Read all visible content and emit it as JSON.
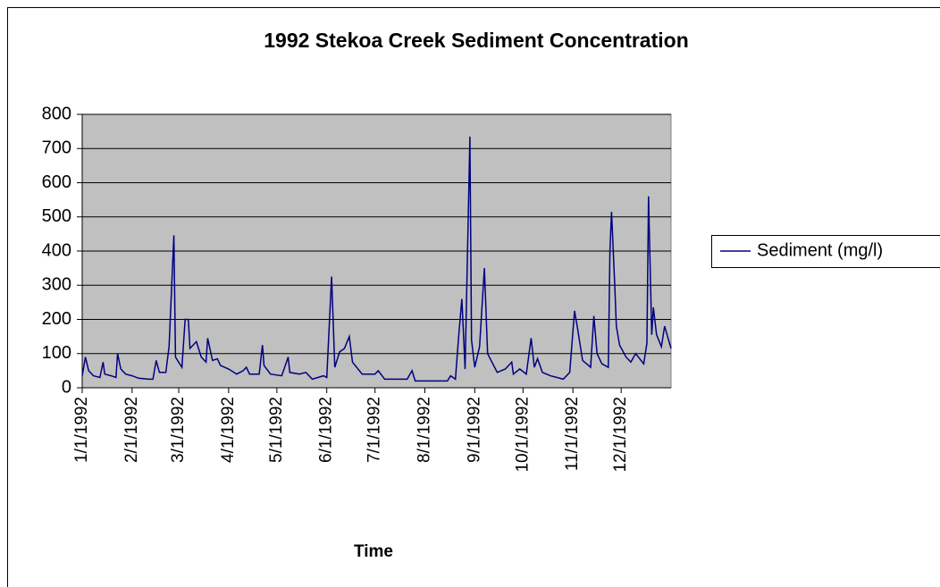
{
  "chart_data": {
    "type": "line",
    "title": "1992 Stekoa Creek Sediment Concentration",
    "x_label": "Time",
    "x": [
      0,
      2,
      4,
      7,
      11,
      13,
      14,
      18,
      21,
      22,
      24,
      27,
      31,
      35,
      41,
      44,
      46,
      48,
      52,
      54,
      57,
      58,
      62,
      64,
      66,
      67,
      71,
      74,
      77,
      78,
      81,
      84,
      86,
      91,
      96,
      100,
      102,
      104,
      110,
      112,
      113,
      117,
      124,
      128,
      129,
      135,
      139,
      143,
      150,
      152,
      155,
      157,
      160,
      163,
      166,
      168,
      174,
      182,
      184,
      188,
      202,
      205,
      207,
      227,
      229,
      232,
      234,
      236,
      238,
      241,
      242,
      244,
      247,
      250,
      252,
      258,
      263,
      267,
      268,
      272,
      276,
      279,
      281,
      283,
      286,
      291,
      299,
      303,
      306,
      308,
      311,
      316,
      318,
      320,
      323,
      327,
      328,
      329,
      331,
      332,
      334,
      338,
      341,
      344,
      349,
      351,
      352,
      354,
      355,
      357,
      360,
      362,
      366
    ],
    "series": [
      {
        "name": "Sediment (mg/l)",
        "color": "#000080",
        "values": [
          35,
          90,
          50,
          35,
          30,
          75,
          40,
          35,
          30,
          100,
          55,
          40,
          35,
          28,
          25,
          25,
          80,
          45,
          45,
          120,
          446,
          90,
          60,
          200,
          200,
          115,
          135,
          90,
          75,
          145,
          80,
          85,
          65,
          55,
          40,
          50,
          60,
          40,
          40,
          125,
          65,
          40,
          35,
          90,
          45,
          40,
          45,
          25,
          35,
          30,
          325,
          60,
          105,
          115,
          150,
          75,
          40,
          40,
          50,
          25,
          25,
          50,
          20,
          20,
          35,
          25,
          150,
          260,
          55,
          735,
          140,
          60,
          120,
          350,
          100,
          45,
          55,
          75,
          40,
          55,
          40,
          145,
          60,
          85,
          45,
          35,
          25,
          45,
          225,
          170,
          80,
          60,
          210,
          100,
          70,
          60,
          400,
          515,
          300,
          180,
          125,
          90,
          75,
          100,
          70,
          130,
          560,
          155,
          235,
          155,
          120,
          180,
          115
        ]
      }
    ],
    "xlim": [
      0,
      366
    ],
    "xticks": [
      {
        "value": 0,
        "label": "1/1/1992"
      },
      {
        "value": 31,
        "label": "2/1/1992"
      },
      {
        "value": 60,
        "label": "3/1/1992"
      },
      {
        "value": 91,
        "label": "4/1/1992"
      },
      {
        "value": 121,
        "label": "5/1/1992"
      },
      {
        "value": 152,
        "label": "6/1/1992"
      },
      {
        "value": 182,
        "label": "7/1/1992"
      },
      {
        "value": 213,
        "label": "8/1/1992"
      },
      {
        "value": 244,
        "label": "9/1/1992"
      },
      {
        "value": 274,
        "label": "10/1/1992"
      },
      {
        "value": 305,
        "label": "11/1/1992"
      },
      {
        "value": 335,
        "label": "12/1/1992"
      }
    ],
    "ylim": [
      0,
      800
    ],
    "yticks": [
      0,
      100,
      200,
      300,
      400,
      500,
      600,
      700,
      800
    ],
    "grid": true,
    "background": "#c0c0c0",
    "legend": "right"
  }
}
